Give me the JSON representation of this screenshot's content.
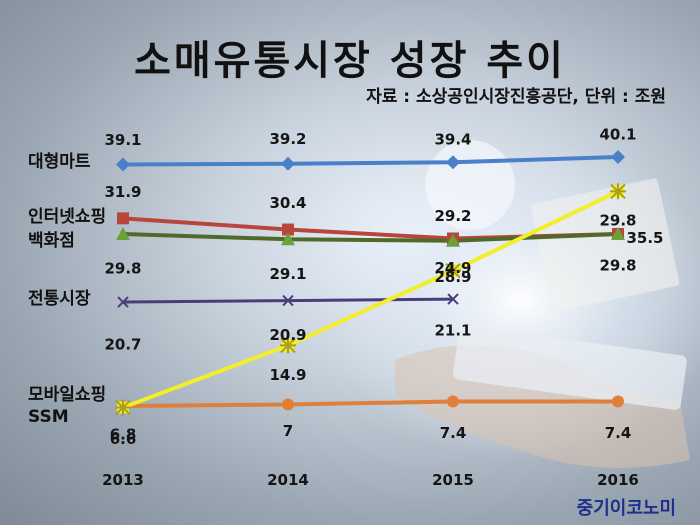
{
  "publisher": "중기이코노미",
  "chart_data": {
    "type": "line",
    "title": "소매유통시장 성장 추이",
    "source": "자료 : 소상공인시장진흥공단, 단위 : 조원",
    "xlabel": "",
    "ylabel": "",
    "x": [
      "2013",
      "2014",
      "2015",
      "2016"
    ],
    "ylim": [
      0,
      44
    ],
    "grid": false,
    "series": [
      {
        "name": "대형마트",
        "values": [
          39.1,
          39.2,
          39.4,
          40.1
        ],
        "labels": [
          "39.1",
          "39.2",
          "39.4",
          "40.1"
        ],
        "color": "#4a7fc9",
        "marker": "diamond"
      },
      {
        "name": "백화점",
        "values": [
          29.8,
          29.1,
          28.9,
          29.8
        ],
        "labels": [
          "29.8",
          "29.1",
          "28.9",
          "29.8"
        ],
        "color": "#4f6b2a",
        "marker": "triangle"
      },
      {
        "name": "인터넷쇼핑",
        "values": [
          31.9,
          30.4,
          29.2,
          29.8
        ],
        "labels": [
          "31.9",
          "30.4",
          "29.2",
          "29.8"
        ],
        "color": "#b8463c",
        "marker": "square"
      },
      {
        "name": "전통시장",
        "values": [
          20.7,
          20.9,
          21.1,
          null
        ],
        "labels": [
          "20.7",
          "20.9",
          "21.1",
          ""
        ],
        "color": "#4a3d7a",
        "marker": "x"
      },
      {
        "name": "SSM",
        "values": [
          6.8,
          7.0,
          7.4,
          7.4
        ],
        "labels": [
          "6.8",
          "7",
          "7.4",
          "7.4"
        ],
        "color": "#e07f3a",
        "marker": "circle"
      },
      {
        "name": "모바일쇼핑",
        "values": [
          6.6,
          14.9,
          24.9,
          35.5
        ],
        "labels": [
          "6.6",
          "14.9",
          "24.9",
          "35.5"
        ],
        "color": "#f2ee2a",
        "marker": "star"
      }
    ]
  }
}
